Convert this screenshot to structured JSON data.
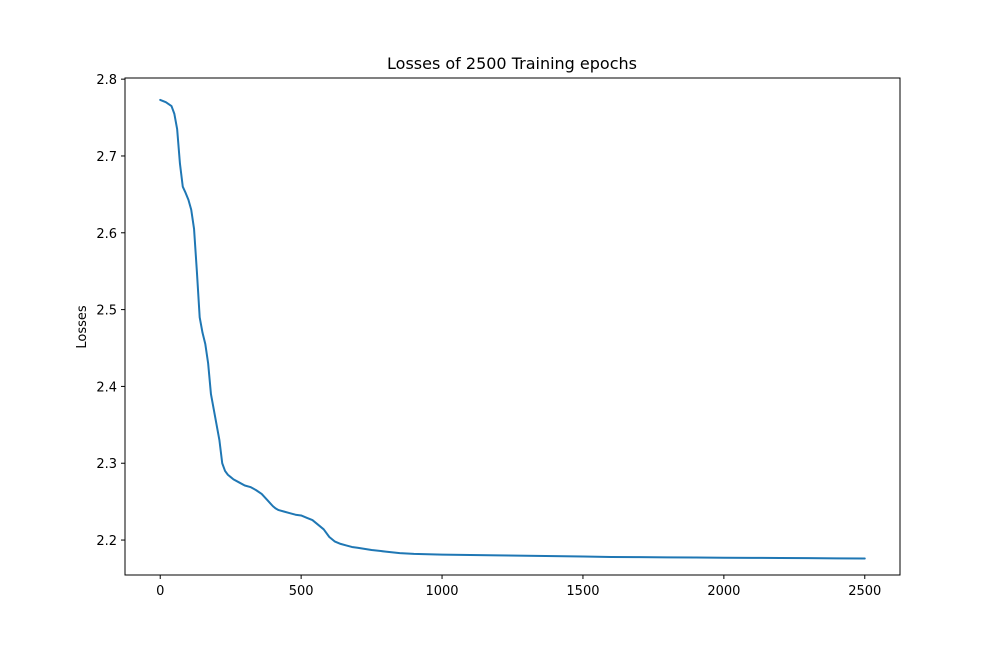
{
  "chart_data": {
    "type": "line",
    "title": "Losses of 2500 Training epochs",
    "xlabel": "",
    "ylabel": "Losses",
    "xlim": [
      -125,
      2625
    ],
    "ylim": [
      2.1545,
      2.8015
    ],
    "xticks": [
      0,
      500,
      1000,
      1500,
      2000,
      2500
    ],
    "xtick_labels": [
      "0",
      "500",
      "1000",
      "1500",
      "2000",
      "2500"
    ],
    "yticks": [
      2.2,
      2.3,
      2.4,
      2.5,
      2.6,
      2.7,
      2.8
    ],
    "ytick_labels": [
      "2.2",
      "2.3",
      "2.4",
      "2.5",
      "2.6",
      "2.7",
      "2.8"
    ],
    "grid": false,
    "series": [
      {
        "color": "#1f77b4",
        "x": [
          0,
          20,
          40,
          50,
          60,
          70,
          80,
          90,
          100,
          110,
          120,
          130,
          140,
          150,
          160,
          170,
          180,
          190,
          200,
          210,
          220,
          230,
          240,
          250,
          260,
          280,
          300,
          320,
          340,
          360,
          380,
          390,
          400,
          410,
          420,
          440,
          460,
          480,
          500,
          520,
          540,
          560,
          580,
          600,
          620,
          640,
          660,
          680,
          700,
          750,
          800,
          850,
          900,
          950,
          1000,
          1100,
          1200,
          1300,
          1400,
          1500,
          1600,
          1700,
          1800,
          1900,
          2000,
          2100,
          2200,
          2300,
          2400,
          2500
        ],
        "y": [
          2.773,
          2.77,
          2.765,
          2.755,
          2.735,
          2.69,
          2.66,
          2.652,
          2.643,
          2.63,
          2.605,
          2.55,
          2.49,
          2.47,
          2.455,
          2.43,
          2.39,
          2.37,
          2.35,
          2.33,
          2.3,
          2.29,
          2.285,
          2.282,
          2.279,
          2.275,
          2.271,
          2.269,
          2.265,
          2.26,
          2.252,
          2.248,
          2.244,
          2.241,
          2.239,
          2.237,
          2.235,
          2.233,
          2.232,
          2.229,
          2.226,
          2.22,
          2.214,
          2.204,
          2.198,
          2.195,
          2.193,
          2.191,
          2.19,
          2.187,
          2.185,
          2.183,
          2.182,
          2.1815,
          2.181,
          2.1805,
          2.18,
          2.1795,
          2.179,
          2.1785,
          2.178,
          2.1778,
          2.1775,
          2.1772,
          2.177,
          2.1768,
          2.1766,
          2.1764,
          2.1762,
          2.176
        ]
      }
    ]
  }
}
